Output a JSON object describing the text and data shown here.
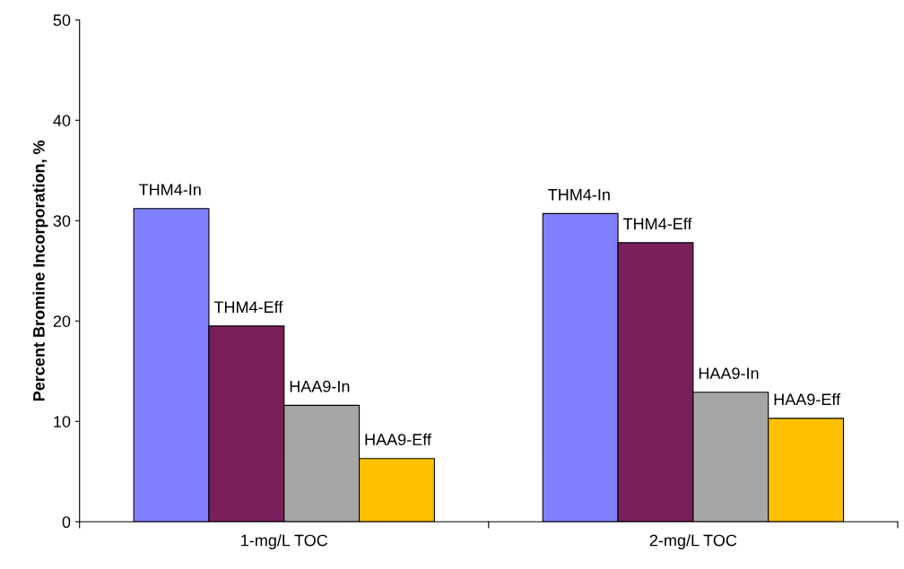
{
  "chart_data": {
    "type": "bar",
    "ylabel": "Percent Bromine Incorporation, %",
    "categories": [
      "1-mg/L TOC",
      "2-mg/L TOC"
    ],
    "series": [
      {
        "name": "THM4-In",
        "color": "#8080ff",
        "values": [
          31.2,
          30.7
        ]
      },
      {
        "name": "THM4-Eff",
        "color": "#7b1f5b",
        "values": [
          19.5,
          27.8
        ]
      },
      {
        "name": "HAA9-In",
        "color": "#a6a6a6",
        "values": [
          11.6,
          12.9
        ]
      },
      {
        "name": "HAA9-Eff",
        "color": "#ffc000",
        "values": [
          6.3,
          10.3
        ]
      }
    ],
    "ylim": [
      0,
      50
    ],
    "yticks": [
      0,
      10,
      20,
      30,
      40,
      50
    ],
    "grid": false,
    "legend": false
  }
}
